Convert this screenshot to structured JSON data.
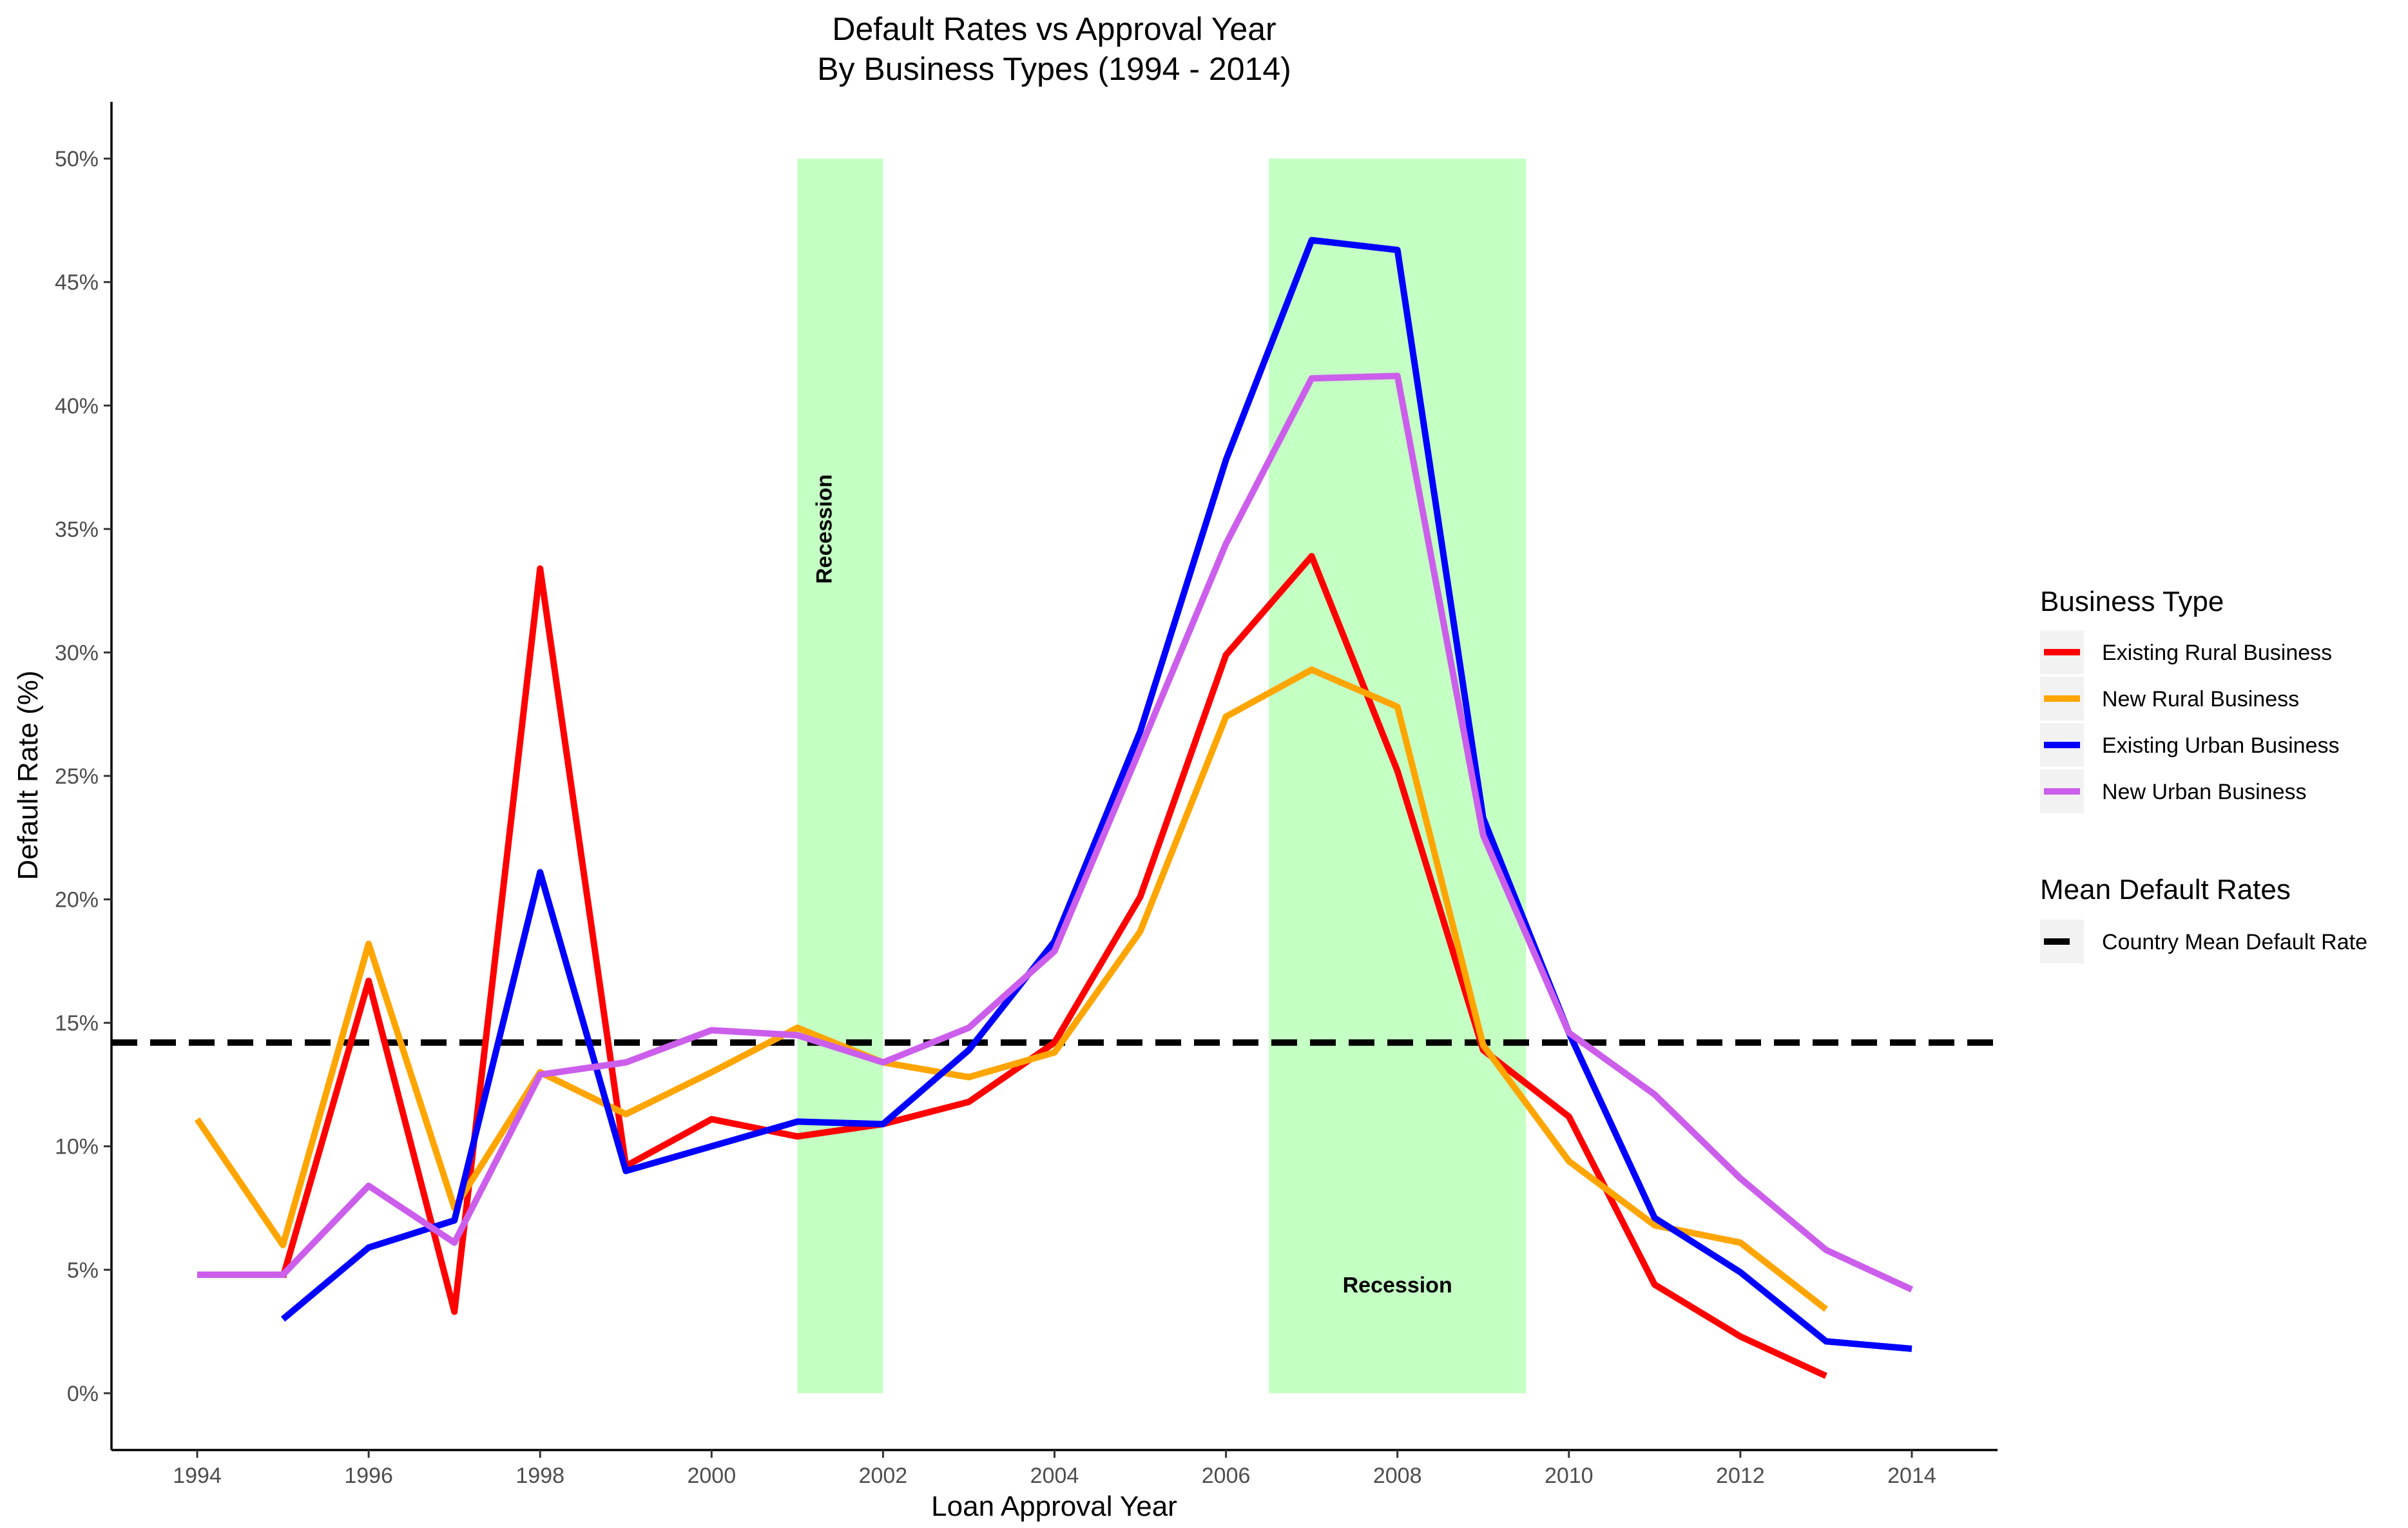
{
  "chart_data": {
    "type": "line",
    "title": "Default Rates vs Approval Year",
    "subtitle": "By Business Types (1994 - 2014)",
    "xlabel": "Loan Approval Year",
    "ylabel": "Default Rate (%)",
    "xlim": [
      1993,
      2015
    ],
    "ylim": [
      -2.3,
      52.3
    ],
    "x_ticks": [
      1994,
      1996,
      1998,
      2000,
      2002,
      2004,
      2006,
      2008,
      2010,
      2012,
      2014
    ],
    "x_tick_labels": [
      "1994",
      "1996",
      "1998",
      "2000",
      "2002",
      "2004",
      "2006",
      "2008",
      "2010",
      "2012",
      "2014"
    ],
    "y_ticks": [
      0,
      5,
      10,
      15,
      20,
      25,
      30,
      35,
      40,
      45,
      50
    ],
    "y_tick_labels": [
      "0%",
      "5%",
      "10%",
      "15%",
      "20%",
      "25%",
      "30%",
      "35%",
      "40%",
      "45%",
      "50%"
    ],
    "grid": false,
    "legend_placement": "right",
    "recessions": [
      {
        "label": "Recession",
        "x_start": 2001,
        "x_end": 2002,
        "y_top": 50,
        "label_x": 2001.4,
        "label_y": 35,
        "label_orientation": "vertical"
      },
      {
        "label": "Recession",
        "x_start": 2006.5,
        "x_end": 2009.5,
        "y_top": 50,
        "label_x": 2008,
        "label_y": 4.4,
        "label_orientation": "horizontal"
      }
    ],
    "recession_color": "#c4ffc4",
    "series": [
      {
        "name": "Existing Rural Business",
        "color": "#ff0000",
        "x": [
          1995,
          1996,
          1997,
          1998,
          1999,
          2000,
          2001,
          2002,
          2003,
          2004,
          2005,
          2006,
          2007,
          2008,
          2009,
          2010,
          2011,
          2012,
          2013
        ],
        "values": [
          4.7,
          16.7,
          3.3,
          33.4,
          9.2,
          11.1,
          10.4,
          10.9,
          11.8,
          14.2,
          20.1,
          29.9,
          33.9,
          25.2,
          13.9,
          11.2,
          4.4,
          2.3,
          0.7
        ]
      },
      {
        "name": "New Rural Business",
        "color": "#ffa500",
        "x": [
          1994,
          1995,
          1996,
          1997,
          1998,
          1999,
          2000,
          2001,
          2002,
          2003,
          2004,
          2005,
          2006,
          2007,
          2008,
          2009,
          2010,
          2011,
          2012,
          2013
        ],
        "values": [
          11.1,
          6.0,
          18.2,
          7.5,
          13.0,
          11.3,
          13.0,
          14.8,
          13.4,
          12.8,
          13.8,
          18.7,
          27.4,
          29.3,
          27.8,
          14.1,
          9.4,
          6.8,
          6.1,
          3.4
        ]
      },
      {
        "name": "Existing Urban Business",
        "color": "#0000ff",
        "x": [
          1995,
          1996,
          1997,
          1998,
          1999,
          2000,
          2001,
          2002,
          2003,
          2004,
          2005,
          2006,
          2007,
          2008,
          2009,
          2010,
          2011,
          2012,
          2013,
          2014
        ],
        "values": [
          3.0,
          5.9,
          7.0,
          21.1,
          9.0,
          10.0,
          11.0,
          10.9,
          13.9,
          18.3,
          26.8,
          37.8,
          46.7,
          46.3,
          23.3,
          14.6,
          7.1,
          4.9,
          2.1,
          1.8
        ]
      },
      {
        "name": "New Urban Business",
        "color": "#cc5eec",
        "x": [
          1994,
          1995,
          1996,
          1997,
          1998,
          1999,
          2000,
          2001,
          2002,
          2003,
          2004,
          2005,
          2006,
          2007,
          2008,
          2009,
          2010,
          2011,
          2012,
          2013,
          2014
        ],
        "values": [
          4.8,
          4.8,
          8.4,
          6.1,
          12.9,
          13.4,
          14.7,
          14.5,
          13.4,
          14.8,
          17.9,
          26.1,
          34.4,
          41.1,
          41.2,
          22.6,
          14.6,
          12.1,
          8.7,
          5.8,
          4.2
        ]
      }
    ],
    "reference_lines": [
      {
        "name": "Country Mean Default Rate",
        "y": 14.2,
        "color": "#000000",
        "style": "dashed"
      }
    ],
    "legend": {
      "business_title": "Business Type",
      "business_items": [
        "Existing Rural Business",
        "New Rural Business",
        "Existing Urban Business",
        "New Urban Business"
      ],
      "mean_title": "Mean Default Rates",
      "mean_items": [
        "Country Mean Default Rate"
      ]
    }
  }
}
